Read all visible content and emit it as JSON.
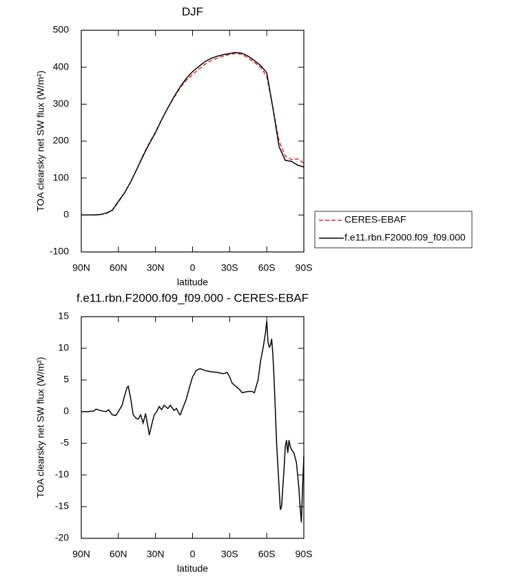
{
  "chart_data": [
    {
      "type": "line",
      "title": "DJF",
      "x_label": "latitude",
      "y_label": "TOA clearsky net SW flux (W/m²)",
      "x": [
        90,
        85,
        80,
        75,
        70,
        65,
        60,
        55,
        50,
        45,
        40,
        35,
        30,
        25,
        20,
        15,
        10,
        5,
        0,
        -5,
        -10,
        -15,
        -20,
        -25,
        -30,
        -35,
        -40,
        -45,
        -50,
        -55,
        -60,
        -65,
        -70,
        -75,
        -80,
        -85,
        -90
      ],
      "series": [
        {
          "name": "CERES-EBAF",
          "color": "#e8201e",
          "linestyle": "dashed",
          "values": [
            0,
            0,
            0,
            1,
            4,
            12,
            35,
            60,
            90,
            125,
            162,
            195,
            225,
            258,
            290,
            318,
            345,
            365,
            380,
            395,
            408,
            418,
            425,
            430,
            435,
            437,
            435,
            425,
            413,
            400,
            375,
            290,
            200,
            160,
            150,
            152,
            140
          ]
        },
        {
          "name": "f.e11.rbn.F2000.f09_f09.000",
          "color": "#000000",
          "linestyle": "solid",
          "values": [
            0,
            0,
            0,
            1,
            5,
            13,
            37,
            60,
            90,
            125,
            160,
            193,
            223,
            258,
            290,
            320,
            347,
            370,
            388,
            402,
            415,
            424,
            430,
            434,
            437,
            440,
            438,
            430,
            418,
            405,
            385,
            290,
            185,
            148,
            145,
            135,
            130
          ]
        }
      ],
      "xlim": [
        90,
        -90
      ],
      "xticks": [
        {
          "value": 90,
          "label": "90N"
        },
        {
          "value": 60,
          "label": "60N"
        },
        {
          "value": 30,
          "label": "30N"
        },
        0,
        {
          "value": -30,
          "label": "30S"
        },
        {
          "value": -60,
          "label": "60S"
        },
        {
          "value": -90,
          "label": "90S"
        }
      ],
      "ylim": [
        -100,
        500
      ],
      "yticks": [
        -100,
        0,
        100,
        200,
        300,
        400,
        500
      ],
      "legend": "right"
    },
    {
      "type": "line",
      "title": "f.e11.rbn.F2000.f09_f09.000 - CERES-EBAF",
      "x_label": "latitude",
      "y_label": "TOA clearsky net SW flux (W/m²)",
      "x": [
        90,
        85,
        80,
        78,
        75,
        70,
        68,
        65,
        62,
        60,
        57,
        55,
        53,
        52,
        50,
        48,
        46,
        44,
        42,
        40,
        38,
        36,
        35,
        33,
        31,
        29,
        27,
        25,
        23,
        20,
        18,
        15,
        13,
        11,
        10,
        8,
        5,
        3,
        0,
        -3,
        -6,
        -10,
        -15,
        -20,
        -25,
        -28,
        -30,
        -32,
        -35,
        -38,
        -40,
        -45,
        -48,
        -50,
        -53,
        -55,
        -57,
        -59,
        -60,
        -61,
        -62,
        -63,
        -64,
        -65,
        -66,
        -68,
        -70,
        -71,
        -72,
        -74,
        -75,
        -76,
        -77,
        -78,
        -79,
        -80,
        -82,
        -84,
        -86,
        -87,
        -88,
        -89,
        -90
      ],
      "values": [
        0,
        0,
        0.1,
        0.4,
        0.2,
        0,
        0.3,
        -0.5,
        -0.6,
        0,
        1,
        2.5,
        3.8,
        4,
        2,
        -0.5,
        -1,
        -1.2,
        -0.5,
        -1.8,
        -0.3,
        -2.5,
        -3.7,
        -2,
        -0.5,
        0,
        0.8,
        0.3,
        1,
        0.5,
        1,
        0.2,
        0.5,
        -0.3,
        -0.5,
        0.5,
        2,
        3.5,
        5.5,
        6.5,
        6.8,
        6.5,
        6.3,
        6.2,
        6,
        6.2,
        5.5,
        4.5,
        4,
        3.5,
        3,
        3.2,
        3.2,
        3,
        5,
        8,
        10,
        12.5,
        14.3,
        11,
        10.2,
        10.5,
        11.5,
        9,
        5,
        -5,
        -12,
        -15.5,
        -15,
        -9,
        -5.5,
        -4.5,
        -6.5,
        -4.5,
        -5.5,
        -6,
        -6.5,
        -8,
        -12,
        -15,
        -17.5,
        -12,
        -7
      ],
      "color": "#000000",
      "linestyle": "solid",
      "xlim": [
        90,
        -90
      ],
      "xticks": [
        {
          "value": 90,
          "label": "90N"
        },
        {
          "value": 60,
          "label": "60N"
        },
        {
          "value": 30,
          "label": "30N"
        },
        0,
        {
          "value": -30,
          "label": "30S"
        },
        {
          "value": -60,
          "label": "60S"
        },
        {
          "value": -90,
          "label": "90S"
        }
      ],
      "ylim": [
        -20,
        15
      ],
      "yticks": [
        -20,
        -15,
        -10,
        -5,
        0,
        5,
        10,
        15
      ]
    }
  ]
}
